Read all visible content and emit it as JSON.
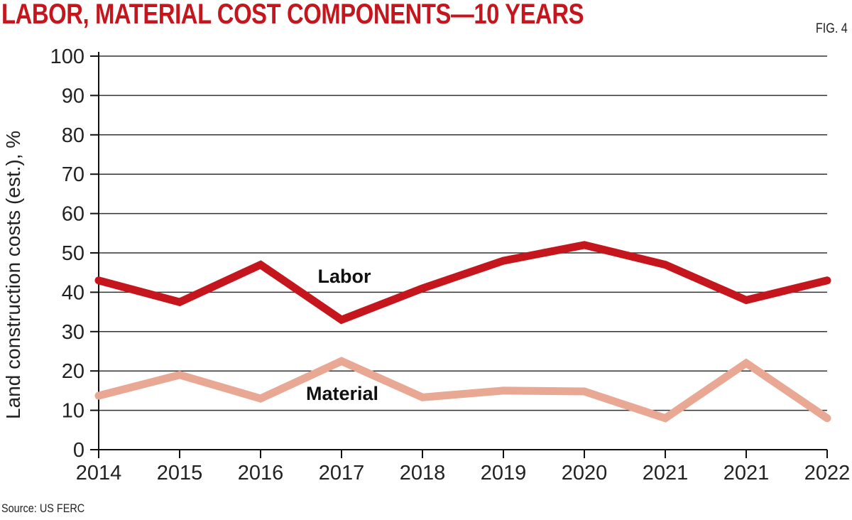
{
  "chart_data": {
    "type": "line",
    "title": "LABOR, MATERIAL COST COMPONENTS—10 YEARS",
    "figure_label": "FIG. 4",
    "source": "Source: US FERC",
    "xlabel": "",
    "ylabel": "Land construction costs (est.), %",
    "ylim": [
      0,
      100
    ],
    "yticks": [
      "0",
      "10",
      "20",
      "30",
      "40",
      "50",
      "60",
      "70",
      "80",
      "90",
      "100"
    ],
    "categories": [
      "2014",
      "2015",
      "2016",
      "2017",
      "2018",
      "2019",
      "2020",
      "2021",
      "2021",
      "2022"
    ],
    "grid": true,
    "series": [
      {
        "name": "Labor",
        "color": "#c4161c",
        "values": [
          43,
          37.5,
          47,
          33,
          41,
          48,
          52,
          47,
          38,
          43
        ]
      },
      {
        "name": "Material",
        "color": "#e8a894",
        "values": [
          13.7,
          19,
          13,
          22.5,
          13.3,
          15,
          14.8,
          8,
          22,
          8
        ]
      }
    ]
  }
}
